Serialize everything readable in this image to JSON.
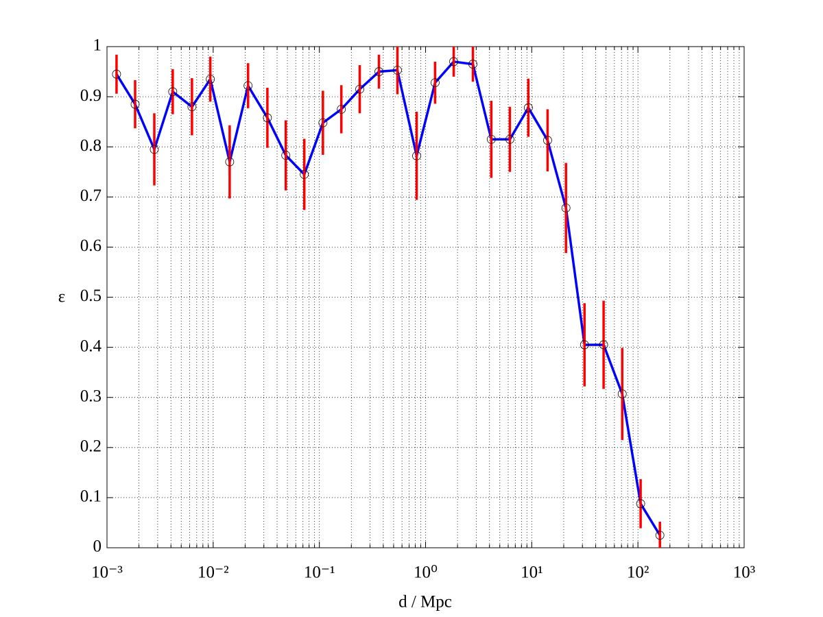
{
  "chart_data": {
    "type": "errorbar",
    "xlabel": "d / Mpc",
    "ylabel": "ε",
    "xscale": "log",
    "x": [
      0.00123,
      0.00184,
      0.00279,
      0.00416,
      0.00631,
      0.0094,
      0.0143,
      0.0213,
      0.0324,
      0.0483,
      0.0721,
      0.108,
      0.161,
      0.24,
      0.364,
      0.543,
      0.824,
      1.23,
      1.84,
      2.79,
      4.16,
      6.22,
      9.29,
      14.1,
      21.0,
      31.4,
      47.5,
      71.1,
      106,
      161
    ],
    "series": [
      {
        "color": "#0000ff",
        "error_color": "#ff0000",
        "marker": "circle",
        "values": [
          0.945,
          0.885,
          0.795,
          0.91,
          0.88,
          0.935,
          0.77,
          0.922,
          0.858,
          0.783,
          0.745,
          0.848,
          0.875,
          0.915,
          0.95,
          0.953,
          0.782,
          0.928,
          0.97,
          0.965,
          0.815,
          0.815,
          0.878,
          0.813,
          0.678,
          0.405,
          0.405,
          0.307,
          0.088,
          0.025
        ],
        "errors": [
          0.039,
          0.048,
          0.072,
          0.045,
          0.057,
          0.045,
          0.073,
          0.045,
          0.06,
          0.07,
          0.071,
          0.064,
          0.048,
          0.048,
          0.034,
          0.048,
          0.088,
          0.042,
          0.03,
          0.035,
          0.077,
          0.065,
          0.058,
          0.062,
          0.09,
          0.083,
          0.088,
          0.092,
          0.049,
          0.027
        ]
      }
    ],
    "xlim": [
      0.001,
      1000
    ],
    "ylim": [
      0,
      1
    ],
    "xticks": [
      {
        "value": 0.001,
        "label": "10⁻³"
      },
      {
        "value": 0.01,
        "label": "10⁻²"
      },
      {
        "value": 0.1,
        "label": "10⁻¹"
      },
      {
        "value": 1,
        "label": "10⁰"
      },
      {
        "value": 10,
        "label": "10¹"
      },
      {
        "value": 100,
        "label": "10²"
      },
      {
        "value": 1000,
        "label": "10³"
      }
    ],
    "yticks": [
      0,
      0.1,
      0.2,
      0.3,
      0.4,
      0.5,
      0.6,
      0.7,
      0.8,
      0.9,
      1
    ],
    "grid": true
  }
}
